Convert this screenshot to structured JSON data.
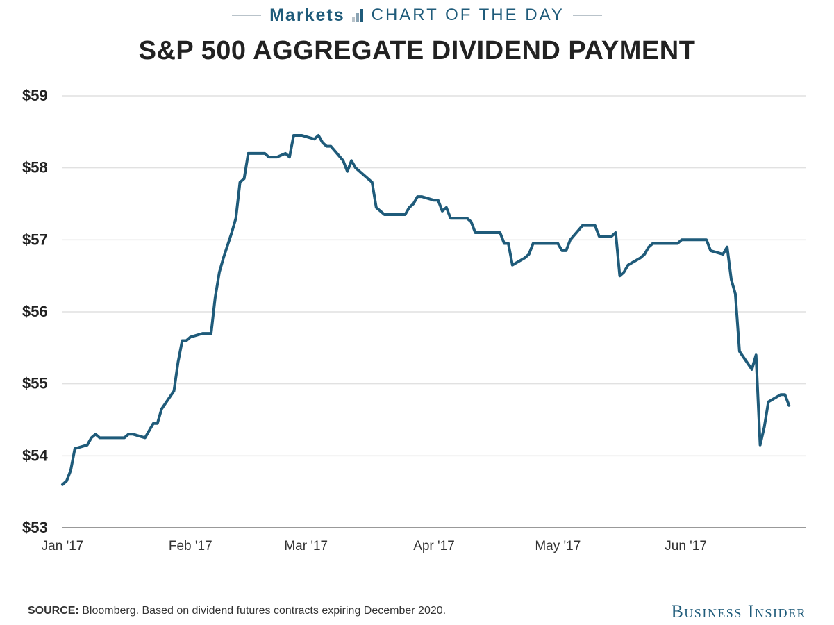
{
  "header": {
    "kicker_left": "Markets",
    "kicker_right": "CHART OF THE DAY",
    "title": "S&P 500 AGGREGATE DIVIDEND PAYMENT"
  },
  "footer": {
    "source_label": "SOURCE:",
    "source_text": "Bloomberg. Based on dividend futures contracts expiring December 2020.",
    "brand": "Business Insider"
  },
  "colors": {
    "line": "#1f5b7a",
    "grid": "#e1e1e1",
    "axis": "#999999",
    "title": "#222222",
    "accent": "#1f5b7a"
  },
  "icons": {
    "kicker_icon": "bar-chart-icon"
  },
  "chart_data": {
    "type": "line",
    "title": "S&P 500 AGGREGATE DIVIDEND PAYMENT",
    "xlabel": "",
    "ylabel": "",
    "ylim": [
      53,
      59
    ],
    "xlim": [
      "2017-01-01",
      "2017-06-30"
    ],
    "grid": true,
    "y_ticks": [
      53,
      54,
      55,
      56,
      57,
      58,
      59
    ],
    "y_tick_labels": [
      "$53",
      "$54",
      "$55",
      "$56",
      "$57",
      "$58",
      "$59"
    ],
    "x_ticks": [
      "2017-01-01",
      "2017-02-01",
      "2017-03-01",
      "2017-04-01",
      "2017-05-01",
      "2017-06-01"
    ],
    "x_tick_labels": [
      "Jan '17",
      "Feb '17",
      "Mar '17",
      "Apr '17",
      "May '17",
      "Jun '17"
    ],
    "series": [
      {
        "name": "",
        "points": [
          [
            "2017-01-01",
            53.6
          ],
          [
            "2017-01-02",
            53.65
          ],
          [
            "2017-01-03",
            53.8
          ],
          [
            "2017-01-04",
            54.1
          ],
          [
            "2017-01-07",
            54.15
          ],
          [
            "2017-01-08",
            54.25
          ],
          [
            "2017-01-09",
            54.3
          ],
          [
            "2017-01-10",
            54.25
          ],
          [
            "2017-01-16",
            54.25
          ],
          [
            "2017-01-17",
            54.3
          ],
          [
            "2017-01-18",
            54.3
          ],
          [
            "2017-01-21",
            54.25
          ],
          [
            "2017-01-23",
            54.45
          ],
          [
            "2017-01-24",
            54.45
          ],
          [
            "2017-01-25",
            54.65
          ],
          [
            "2017-01-28",
            54.9
          ],
          [
            "2017-01-29",
            55.3
          ],
          [
            "2017-01-30",
            55.6
          ],
          [
            "2017-01-31",
            55.6
          ],
          [
            "2017-02-01",
            55.65
          ],
          [
            "2017-02-04",
            55.7
          ],
          [
            "2017-02-06",
            55.7
          ],
          [
            "2017-02-07",
            56.2
          ],
          [
            "2017-02-08",
            56.55
          ],
          [
            "2017-02-09",
            56.75
          ],
          [
            "2017-02-11",
            57.1
          ],
          [
            "2017-02-12",
            57.3
          ],
          [
            "2017-02-13",
            57.8
          ],
          [
            "2017-02-14",
            57.85
          ],
          [
            "2017-02-15",
            58.2
          ],
          [
            "2017-02-19",
            58.2
          ],
          [
            "2017-02-20",
            58.15
          ],
          [
            "2017-02-22",
            58.15
          ],
          [
            "2017-02-24",
            58.2
          ],
          [
            "2017-02-25",
            58.15
          ],
          [
            "2017-02-26",
            58.45
          ],
          [
            "2017-02-28",
            58.45
          ],
          [
            "2017-03-03",
            58.4
          ],
          [
            "2017-03-04",
            58.45
          ],
          [
            "2017-03-05",
            58.35
          ],
          [
            "2017-03-06",
            58.3
          ],
          [
            "2017-03-07",
            58.3
          ],
          [
            "2017-03-10",
            58.1
          ],
          [
            "2017-03-11",
            57.95
          ],
          [
            "2017-03-12",
            58.1
          ],
          [
            "2017-03-13",
            58.0
          ],
          [
            "2017-03-17",
            57.8
          ],
          [
            "2017-03-18",
            57.45
          ],
          [
            "2017-03-20",
            57.35
          ],
          [
            "2017-03-25",
            57.35
          ],
          [
            "2017-03-26",
            57.45
          ],
          [
            "2017-03-27",
            57.5
          ],
          [
            "2017-03-28",
            57.6
          ],
          [
            "2017-03-29",
            57.6
          ],
          [
            "2017-04-01",
            57.55
          ],
          [
            "2017-04-02",
            57.55
          ],
          [
            "2017-04-03",
            57.4
          ],
          [
            "2017-04-04",
            57.45
          ],
          [
            "2017-04-05",
            57.3
          ],
          [
            "2017-04-09",
            57.3
          ],
          [
            "2017-04-10",
            57.25
          ],
          [
            "2017-04-11",
            57.1
          ],
          [
            "2017-04-17",
            57.1
          ],
          [
            "2017-04-18",
            56.95
          ],
          [
            "2017-04-19",
            56.95
          ],
          [
            "2017-04-20",
            56.65
          ],
          [
            "2017-04-23",
            56.75
          ],
          [
            "2017-04-24",
            56.8
          ],
          [
            "2017-04-25",
            56.95
          ],
          [
            "2017-05-01",
            56.95
          ],
          [
            "2017-05-02",
            56.85
          ],
          [
            "2017-05-03",
            56.85
          ],
          [
            "2017-05-04",
            57.0
          ],
          [
            "2017-05-07",
            57.2
          ],
          [
            "2017-05-10",
            57.2
          ],
          [
            "2017-05-11",
            57.05
          ],
          [
            "2017-05-14",
            57.05
          ],
          [
            "2017-05-15",
            57.1
          ],
          [
            "2017-05-16",
            56.5
          ],
          [
            "2017-05-17",
            56.55
          ],
          [
            "2017-05-18",
            56.65
          ],
          [
            "2017-05-21",
            56.75
          ],
          [
            "2017-05-22",
            56.8
          ],
          [
            "2017-05-23",
            56.9
          ],
          [
            "2017-05-24",
            56.95
          ],
          [
            "2017-05-30",
            56.95
          ],
          [
            "2017-05-31",
            57.0
          ],
          [
            "2017-06-06",
            57.0
          ],
          [
            "2017-06-07",
            56.85
          ],
          [
            "2017-06-10",
            56.8
          ],
          [
            "2017-06-11",
            56.9
          ],
          [
            "2017-06-12",
            56.45
          ],
          [
            "2017-06-13",
            56.25
          ],
          [
            "2017-06-14",
            55.45
          ],
          [
            "2017-06-17",
            55.2
          ],
          [
            "2017-06-18",
            55.4
          ],
          [
            "2017-06-19",
            54.15
          ],
          [
            "2017-06-20",
            54.4
          ],
          [
            "2017-06-21",
            54.75
          ],
          [
            "2017-06-24",
            54.85
          ],
          [
            "2017-06-25",
            54.85
          ],
          [
            "2017-06-26",
            54.7
          ]
        ]
      }
    ]
  }
}
